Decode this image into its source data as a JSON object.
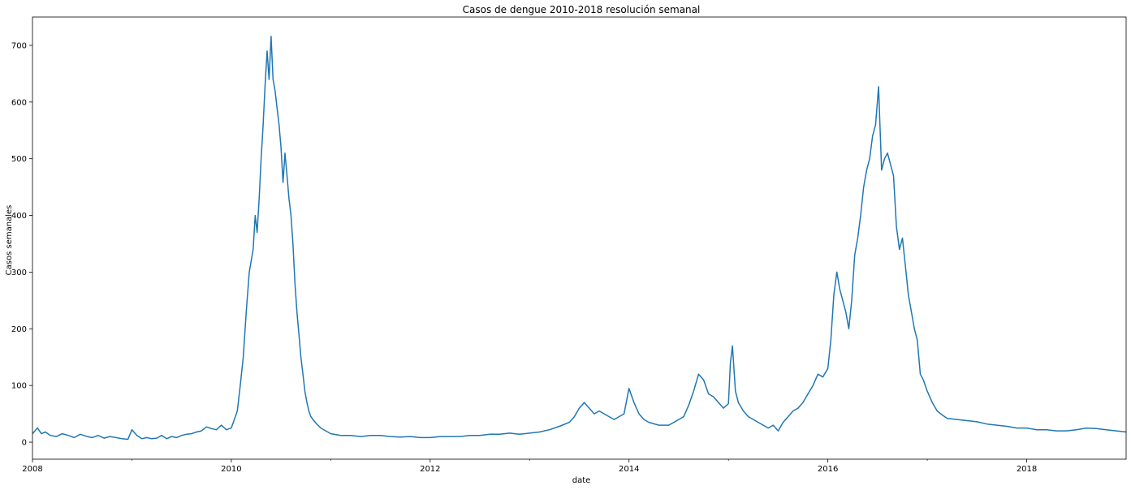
{
  "chart_data": {
    "type": "line",
    "title": "Casos de dengue 2010-2018 resolución semanal",
    "xlabel": "date",
    "ylabel": "Casos semanales",
    "xlim": [
      2008.0,
      2019.0
    ],
    "ylim": [
      -30,
      750
    ],
    "x_major_ticks": [
      {
        "value": 2008,
        "label": "2008"
      },
      {
        "value": 2010,
        "label": "2010"
      },
      {
        "value": 2012,
        "label": "2012"
      },
      {
        "value": 2014,
        "label": "2014"
      },
      {
        "value": 2016,
        "label": "2016"
      },
      {
        "value": 2018,
        "label": "2018"
      }
    ],
    "x_minor_ticks": [
      2009,
      2011,
      2013,
      2015,
      2017
    ],
    "y_ticks": [
      0,
      100,
      200,
      300,
      400,
      500,
      600,
      700
    ],
    "grid": false,
    "legend": "none",
    "color": "#1f77b4",
    "series": [
      {
        "x": [
          2008.0,
          2008.05,
          2008.09,
          2008.13,
          2008.18,
          2008.24,
          2008.3,
          2008.36,
          2008.42,
          2008.48,
          2008.55,
          2008.6,
          2008.66,
          2008.72,
          2008.78,
          2008.84,
          2008.9,
          2008.96,
          2009.0,
          2009.05,
          2009.1,
          2009.15,
          2009.2,
          2009.25,
          2009.3,
          2009.35,
          2009.4,
          2009.45,
          2009.5,
          2009.55,
          2009.6,
          2009.65,
          2009.7,
          2009.75,
          2009.8,
          2009.85,
          2009.9,
          2009.95,
          2010.0,
          2010.03,
          2010.06,
          2010.09,
          2010.12,
          2010.15,
          2010.18,
          2010.2,
          2010.22,
          2010.24,
          2010.26,
          2010.28,
          2010.3,
          2010.32,
          2010.34,
          2010.36,
          2010.38,
          2010.4,
          2010.42,
          2010.44,
          2010.46,
          2010.48,
          2010.5,
          2010.52,
          2010.54,
          2010.56,
          2010.58,
          2010.6,
          2010.62,
          2010.64,
          2010.66,
          2010.68,
          2010.7,
          2010.72,
          2010.74,
          2010.76,
          2010.78,
          2010.8,
          2010.83,
          2010.86,
          2010.9,
          2010.95,
          2011.0,
          2011.1,
          2011.2,
          2011.3,
          2011.4,
          2011.5,
          2011.6,
          2011.7,
          2011.8,
          2011.9,
          2012.0,
          2012.1,
          2012.2,
          2012.3,
          2012.4,
          2012.5,
          2012.6,
          2012.7,
          2012.8,
          2012.9,
          2013.0,
          2013.1,
          2013.2,
          2013.3,
          2013.4,
          2013.45,
          2013.5,
          2013.55,
          2013.6,
          2013.65,
          2013.7,
          2013.75,
          2013.8,
          2013.85,
          2013.9,
          2013.95,
          2014.0,
          2014.05,
          2014.1,
          2014.15,
          2014.2,
          2014.3,
          2014.4,
          2014.5,
          2014.55,
          2014.6,
          2014.65,
          2014.7,
          2014.75,
          2014.8,
          2014.85,
          2014.9,
          2014.95,
          2015.0,
          2015.02,
          2015.04,
          2015.07,
          2015.1,
          2015.15,
          2015.2,
          2015.3,
          2015.35,
          2015.4,
          2015.45,
          2015.5,
          2015.55,
          2015.6,
          2015.65,
          2015.7,
          2015.75,
          2015.8,
          2015.85,
          2015.9,
          2015.95,
          2016.0,
          2016.03,
          2016.06,
          2016.09,
          2016.12,
          2016.15,
          2016.18,
          2016.21,
          2016.24,
          2016.27,
          2016.3,
          2016.33,
          2016.36,
          2016.39,
          2016.42,
          2016.45,
          2016.48,
          2016.51,
          2016.54,
          2016.57,
          2016.6,
          2016.63,
          2016.66,
          2016.69,
          2016.72,
          2016.75,
          2016.78,
          2016.81,
          2016.84,
          2016.87,
          2016.9,
          2016.93,
          2016.96,
          2017.0,
          2017.05,
          2017.1,
          2017.15,
          2017.2,
          2017.3,
          2017.4,
          2017.5,
          2017.6,
          2017.7,
          2017.8,
          2017.9,
          2018.0,
          2018.1,
          2018.2,
          2018.3,
          2018.4,
          2018.5,
          2018.6,
          2018.7,
          2018.8,
          2018.9,
          2019.0
        ],
        "values": [
          15,
          25,
          15,
          18,
          12,
          10,
          15,
          12,
          8,
          14,
          10,
          8,
          12,
          7,
          10,
          8,
          6,
          5,
          22,
          12,
          6,
          8,
          6,
          7,
          12,
          6,
          10,
          8,
          12,
          14,
          15,
          18,
          20,
          27,
          24,
          22,
          30,
          22,
          25,
          40,
          55,
          100,
          150,
          230,
          300,
          320,
          340,
          400,
          370,
          430,
          500,
          560,
          630,
          690,
          640,
          716,
          640,
          620,
          590,
          560,
          520,
          458,
          510,
          470,
          430,
          400,
          350,
          280,
          230,
          190,
          150,
          120,
          90,
          70,
          55,
          45,
          38,
          32,
          25,
          20,
          15,
          12,
          12,
          10,
          12,
          12,
          10,
          9,
          10,
          8,
          8,
          10,
          10,
          10,
          12,
          12,
          14,
          14,
          16,
          14,
          16,
          18,
          22,
          28,
          35,
          45,
          60,
          70,
          60,
          50,
          55,
          50,
          45,
          40,
          45,
          50,
          95,
          70,
          50,
          40,
          35,
          30,
          30,
          40,
          45,
          65,
          90,
          120,
          110,
          85,
          80,
          70,
          60,
          68,
          140,
          170,
          90,
          70,
          55,
          45,
          35,
          30,
          25,
          30,
          20,
          35,
          45,
          55,
          60,
          70,
          85,
          100,
          120,
          115,
          130,
          180,
          260,
          300,
          270,
          250,
          230,
          200,
          250,
          330,
          360,
          400,
          450,
          480,
          500,
          540,
          560,
          627,
          480,
          500,
          510,
          490,
          470,
          380,
          340,
          360,
          310,
          260,
          230,
          200,
          180,
          120,
          110,
          90,
          70,
          55,
          48,
          42,
          40,
          38,
          36,
          32,
          30,
          28,
          25,
          25,
          22,
          22,
          20,
          20,
          22,
          25,
          24,
          22,
          20,
          18
        ]
      }
    ]
  }
}
